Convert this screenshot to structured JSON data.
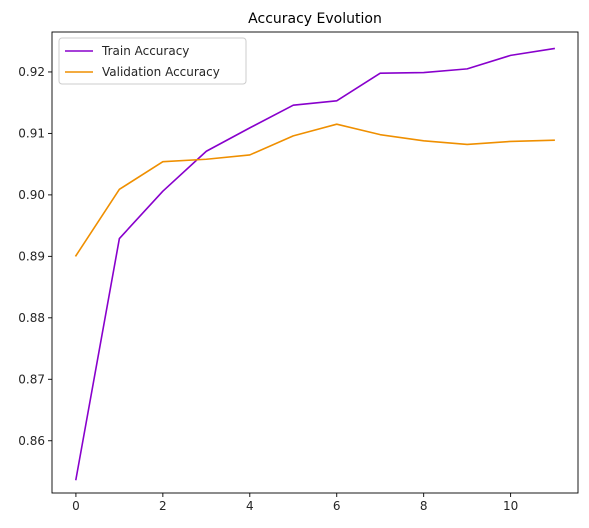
{
  "chart_data": {
    "type": "line",
    "title": "Accuracy Evolution",
    "xlabel": "",
    "ylabel": "",
    "x": [
      0,
      1,
      2,
      3,
      4,
      5,
      6,
      7,
      8,
      9,
      10,
      11
    ],
    "xlim": [
      -0.55,
      11.55
    ],
    "ylim": [
      0.8515,
      0.9265
    ],
    "xticks": [
      0,
      2,
      4,
      6,
      8,
      10
    ],
    "yticks": [
      0.86,
      0.87,
      0.88,
      0.89,
      0.9,
      0.91,
      0.92
    ],
    "xtick_labels": [
      "0",
      "2",
      "4",
      "6",
      "8",
      "10"
    ],
    "ytick_labels": [
      "0.86",
      "0.87",
      "0.88",
      "0.89",
      "0.90",
      "0.91",
      "0.92"
    ],
    "grid": false,
    "legend_position": "top-left",
    "series": [
      {
        "name": "Train Accuracy",
        "color": "#8800cc",
        "values": [
          0.8537,
          0.8929,
          0.9006,
          0.9071,
          0.9109,
          0.9146,
          0.9153,
          0.9198,
          0.9199,
          0.9205,
          0.9227,
          0.9238
        ]
      },
      {
        "name": "Validation Accuracy",
        "color": "#ef8f00",
        "values": [
          0.8901,
          0.9009,
          0.9054,
          0.9058,
          0.9065,
          0.9096,
          0.9115,
          0.9098,
          0.9088,
          0.9082,
          0.9087,
          0.9089
        ]
      }
    ]
  }
}
